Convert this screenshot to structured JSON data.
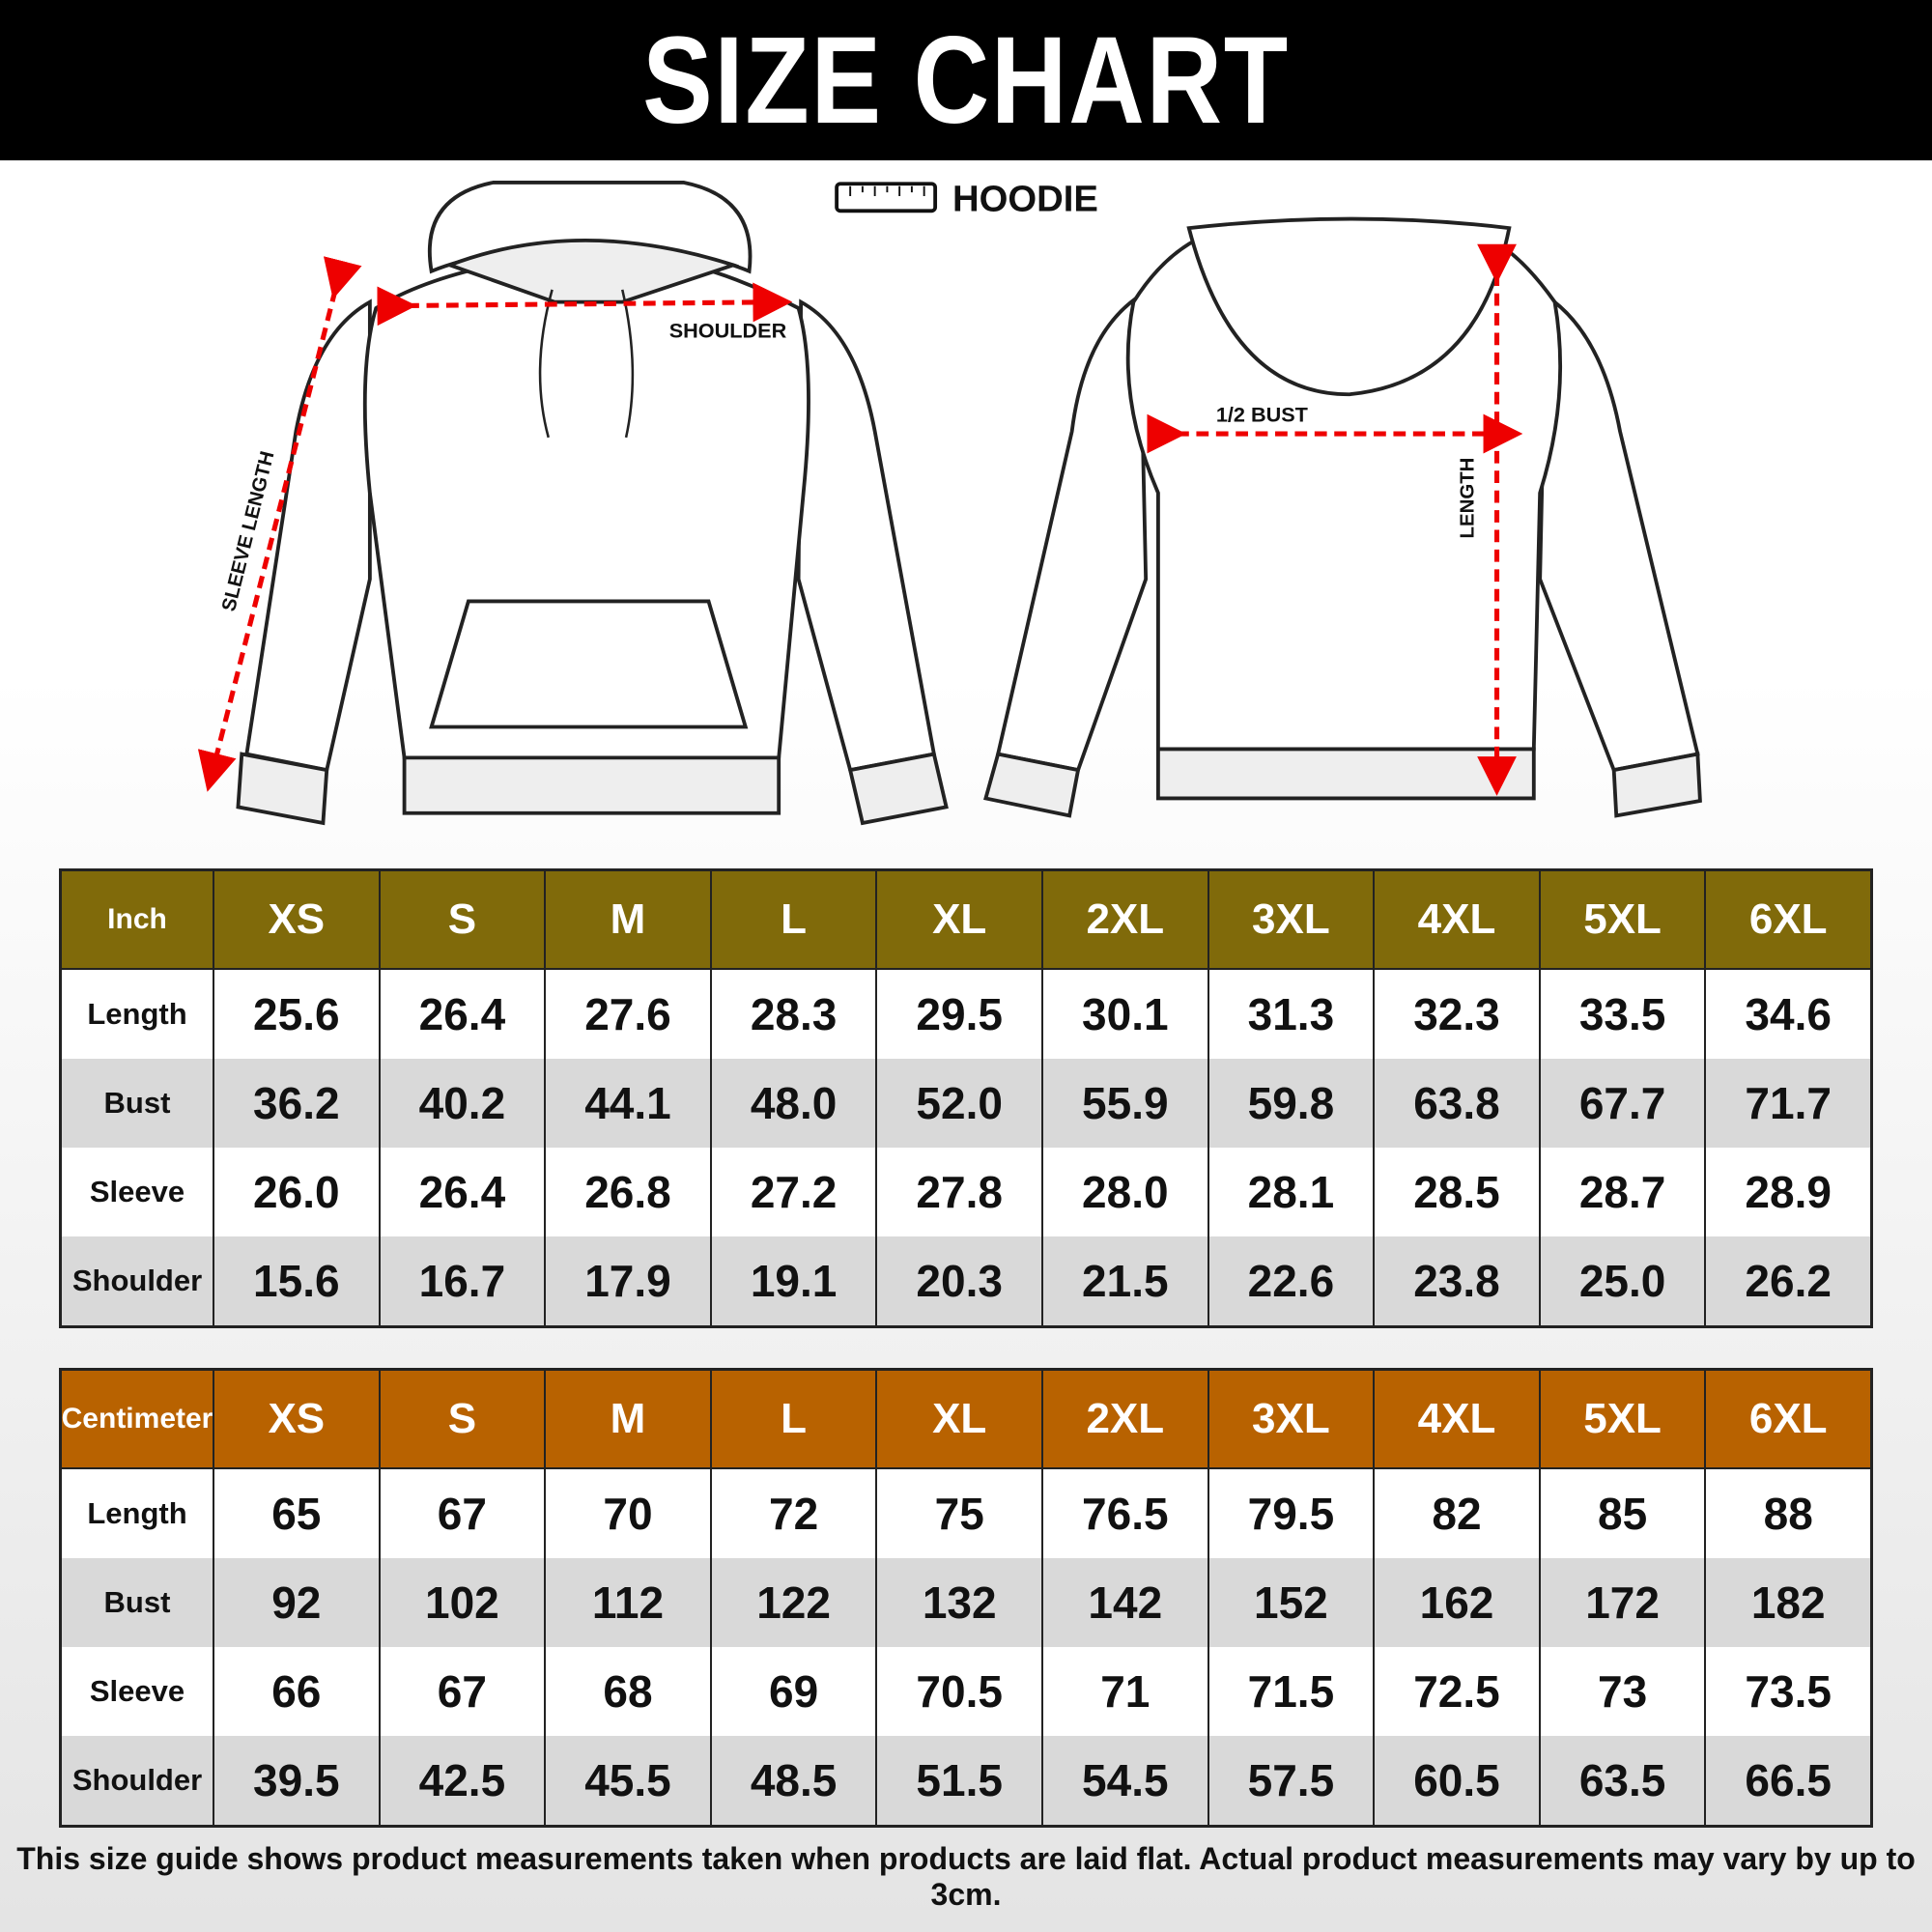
{
  "header": {
    "title": "SIZE CHART"
  },
  "product": "HOODIE",
  "diagram": {
    "shoulder": "SHOULDER",
    "sleeve": "SLEEVE LENGTH",
    "bust": "1/2 BUST",
    "length": "LENGTH"
  },
  "tables": [
    {
      "unit": "Inch",
      "sizes": [
        "XS",
        "S",
        "M",
        "L",
        "XL",
        "2XL",
        "3XL",
        "4XL",
        "5XL",
        "6XL"
      ],
      "rows": [
        {
          "label": "Length",
          "values": [
            "25.6",
            "26.4",
            "27.6",
            "28.3",
            "29.5",
            "30.1",
            "31.3",
            "32.3",
            "33.5",
            "34.6"
          ]
        },
        {
          "label": "Bust",
          "values": [
            "36.2",
            "40.2",
            "44.1",
            "48.0",
            "52.0",
            "55.9",
            "59.8",
            "63.8",
            "67.7",
            "71.7"
          ]
        },
        {
          "label": "Sleeve",
          "values": [
            "26.0",
            "26.4",
            "26.8",
            "27.2",
            "27.8",
            "28.0",
            "28.1",
            "28.5",
            "28.7",
            "28.9"
          ]
        },
        {
          "label": "Shoulder",
          "values": [
            "15.6",
            "16.7",
            "17.9",
            "19.1",
            "20.3",
            "21.5",
            "22.6",
            "23.8",
            "25.0",
            "26.2"
          ]
        }
      ]
    },
    {
      "unit": "Centimeter",
      "sizes": [
        "XS",
        "S",
        "M",
        "L",
        "XL",
        "2XL",
        "3XL",
        "4XL",
        "5XL",
        "6XL"
      ],
      "rows": [
        {
          "label": "Length",
          "values": [
            "65",
            "67",
            "70",
            "72",
            "75",
            "76.5",
            "79.5",
            "82",
            "85",
            "88"
          ]
        },
        {
          "label": "Bust",
          "values": [
            "92",
            "102",
            "112",
            "122",
            "132",
            "142",
            "152",
            "162",
            "172",
            "182"
          ]
        },
        {
          "label": "Sleeve",
          "values": [
            "66",
            "67",
            "68",
            "69",
            "70.5",
            "71",
            "71.5",
            "72.5",
            "73",
            "73.5"
          ]
        },
        {
          "label": "Shoulder",
          "values": [
            "39.5",
            "42.5",
            "45.5",
            "48.5",
            "51.5",
            "54.5",
            "57.5",
            "60.5",
            "63.5",
            "66.5"
          ]
        }
      ]
    }
  ],
  "footer": "This size guide shows product measurements taken when products are laid flat. Actual product measurements may vary by up to 3cm."
}
